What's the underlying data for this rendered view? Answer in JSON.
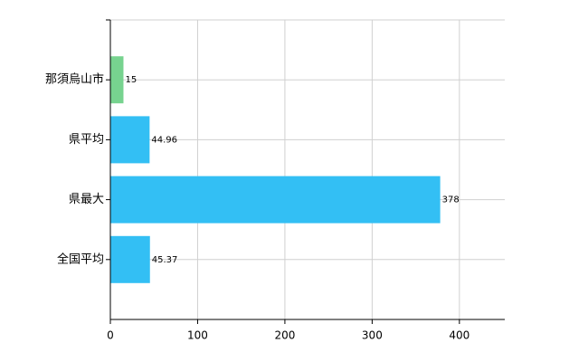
{
  "chart_data": {
    "type": "hbar",
    "categories": [
      "那須烏山市",
      "県平均",
      "県最大",
      "全国平均"
    ],
    "values": [
      15,
      44.96,
      378,
      45.37
    ],
    "colors": [
      "#77d38f",
      "#33bff4",
      "#33bff4",
      "#33bff4"
    ],
    "xlim": [
      0,
      452
    ],
    "xticks": [
      0,
      100,
      200,
      300,
      400
    ],
    "grid": true
  }
}
